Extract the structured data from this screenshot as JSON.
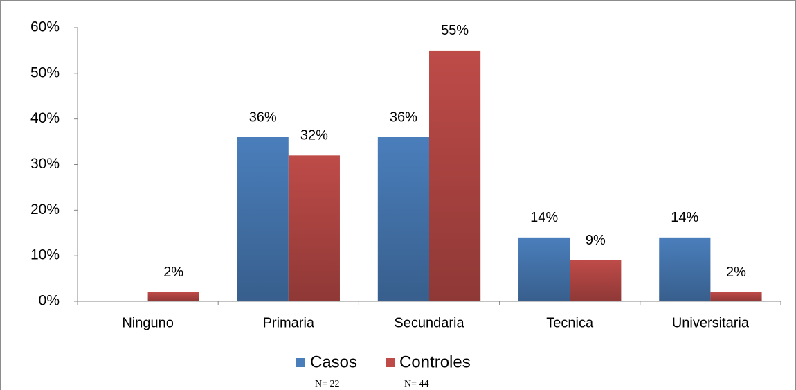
{
  "chart_data": {
    "type": "bar",
    "categories": [
      "Ninguno",
      "Primaria",
      "Secundaria",
      "Tecnica",
      "Universitaria"
    ],
    "series": [
      {
        "name": "Casos",
        "color": "#4a7ebb",
        "values": [
          0,
          36,
          36,
          14,
          14
        ],
        "value_labels": [
          null,
          "36%",
          "36%",
          "14%",
          "14%"
        ],
        "note": "N= 22"
      },
      {
        "name": "Controles",
        "color": "#be4b48",
        "values": [
          2,
          32,
          55,
          9,
          2
        ],
        "value_labels": [
          "2%",
          "32%",
          "55%",
          "9%",
          "2%"
        ],
        "note": "N= 44"
      }
    ],
    "ylim": [
      0,
      60
    ],
    "yticks": [
      {
        "value": 0,
        "label": "0%"
      },
      {
        "value": 10,
        "label": "10%"
      },
      {
        "value": 20,
        "label": "20%"
      },
      {
        "value": 30,
        "label": "30%"
      },
      {
        "value": 40,
        "label": "40%"
      },
      {
        "value": 50,
        "label": "50%"
      },
      {
        "value": 60,
        "label": "60%"
      }
    ],
    "grid": false,
    "legend": "bottom"
  }
}
